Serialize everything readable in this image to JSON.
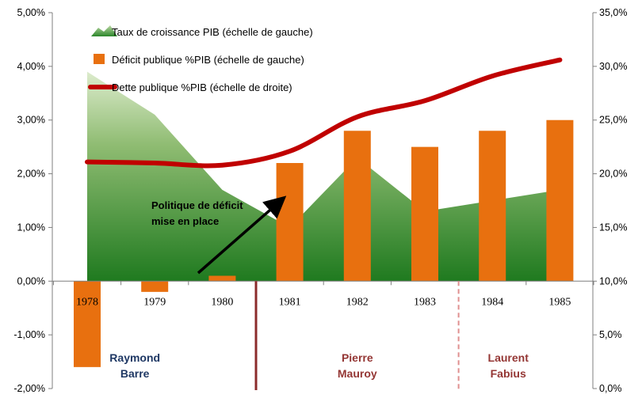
{
  "chart_data": {
    "type": "combo",
    "categories": [
      "1978",
      "1979",
      "1980",
      "1981",
      "1982",
      "1983",
      "1984",
      "1985"
    ],
    "series": [
      {
        "name": "Taux de croissance PIB (échelle de gauche)",
        "kind": "area",
        "axis": "left",
        "values": [
          3.9,
          3.1,
          1.7,
          1.0,
          2.3,
          1.3,
          1.5,
          1.7
        ],
        "color_dark": "#1c7a1c",
        "color_light": "#d8eac8"
      },
      {
        "name": "Déficit publique %PIB (échelle de gauche)",
        "kind": "bar",
        "axis": "left",
        "values": [
          -1.6,
          -0.2,
          0.1,
          2.2,
          2.8,
          2.5,
          2.8,
          3.0
        ],
        "color": "#e8700f"
      },
      {
        "name": "Dette publique %PIB (échelle de droite)",
        "kind": "line",
        "axis": "right",
        "values": [
          21.1,
          21.0,
          20.8,
          22.1,
          25.3,
          26.8,
          29.1,
          30.6
        ],
        "color": "#c00000"
      }
    ],
    "left_axis": {
      "min": -2,
      "max": 5,
      "step": 1,
      "tick_labels": [
        "-2,00%",
        "-1,00%",
        "0,00%",
        "1,00%",
        "2,00%",
        "3,00%",
        "4,00%",
        "5,00%"
      ]
    },
    "right_axis": {
      "min": 0,
      "max": 35,
      "step": 5,
      "tick_labels": [
        "0,0%",
        "5,0%",
        "10,0%",
        "15,0%",
        "20,0%",
        "25,0%",
        "30,0%",
        "35,0%"
      ]
    },
    "legend_position": "top-left",
    "grid": false,
    "annotation": {
      "lines": [
        "Politique de déficit",
        "mise en place"
      ]
    },
    "periods": [
      {
        "lines": [
          "Raymond",
          "Barre"
        ],
        "color": "#1f3864"
      },
      {
        "lines": [
          "Pierre",
          "Mauroy"
        ],
        "color": "#943634"
      },
      {
        "lines": [
          "Laurent",
          "Fabius"
        ],
        "color": "#943634"
      }
    ],
    "dividers": [
      {
        "after_category": "1980",
        "style": "solid",
        "color": "#8b2b2b"
      },
      {
        "after_category": "1983",
        "style": "dashed",
        "color": "#e09090"
      }
    ]
  }
}
